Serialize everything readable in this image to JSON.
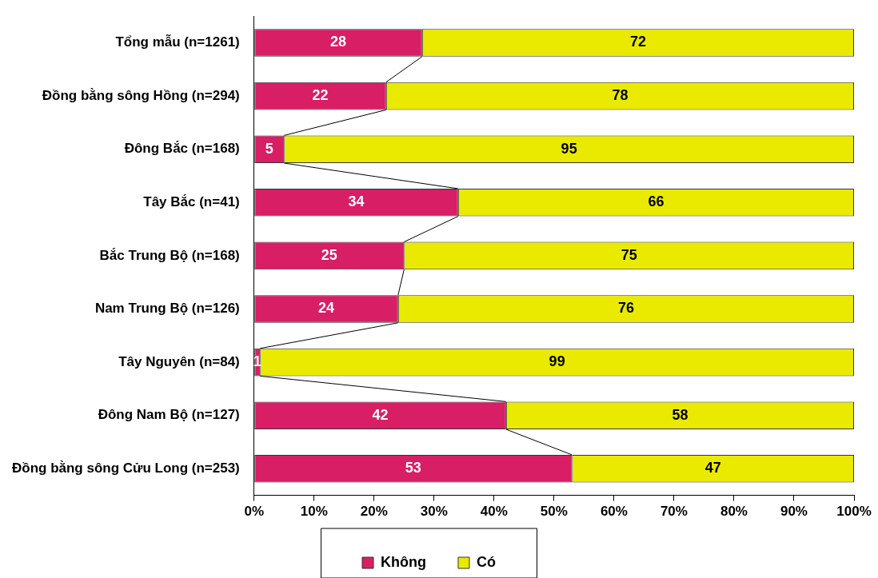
{
  "chart_data": {
    "type": "bar",
    "orientation": "horizontal",
    "stacked": true,
    "data_labels": true,
    "grid": false,
    "legend": "bottom",
    "categories": [
      "Tổng mẫu (n=1261)",
      "Đồng bằng sông Hồng (n=294)",
      "Đông Bắc (n=168)",
      "Tây Bắc (n=41)",
      "Bắc Trung Bộ (n=168)",
      "Nam Trung Bộ (n=126)",
      "Tây Nguyên (n=84)",
      "Đông Nam Bộ (n=127)",
      "Đồng bằng sông Cửu Long (n=253)"
    ],
    "series": [
      {
        "name": "Không",
        "color": "#d81e64",
        "values": [
          28,
          22,
          5,
          34,
          25,
          24,
          1,
          42,
          53
        ]
      },
      {
        "name": "Có",
        "color": "#eaea00",
        "values": [
          72,
          78,
          95,
          66,
          75,
          76,
          99,
          58,
          47
        ]
      }
    ],
    "xlim": [
      0,
      100
    ],
    "xticks": [
      {
        "value": 0,
        "label": "0%"
      },
      {
        "value": 10,
        "label": "10%"
      },
      {
        "value": 20,
        "label": "20%"
      },
      {
        "value": 30,
        "label": "30%"
      },
      {
        "value": 40,
        "label": "40%"
      },
      {
        "value": 50,
        "label": "50%"
      },
      {
        "value": 60,
        "label": "60%"
      },
      {
        "value": 70,
        "label": "70%"
      },
      {
        "value": 80,
        "label": "80%"
      },
      {
        "value": 90,
        "label": "90%"
      },
      {
        "value": 100,
        "label": "100%"
      }
    ]
  }
}
